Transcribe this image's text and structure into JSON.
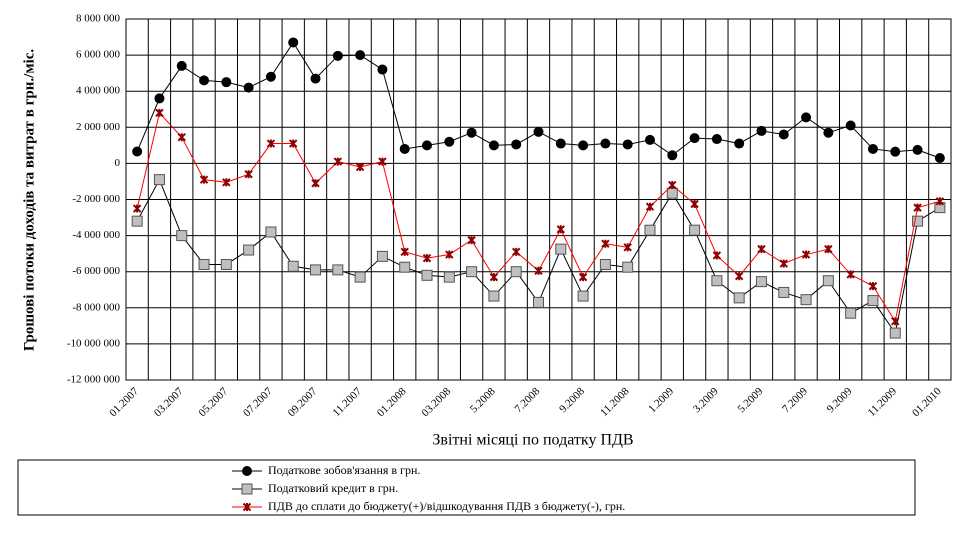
{
  "chart_data": {
    "type": "line",
    "ylabel": "Грошові потоки доходів та витрат в грн./міс.",
    "xlabel": "Звітні місяці по податку ПДВ",
    "categories": [
      "01.2007",
      null,
      "03.2007",
      null,
      "05.2007",
      null,
      "07.2007",
      null,
      "09.2007",
      null,
      "11.2007",
      null,
      "01.2008",
      null,
      "03.2008",
      null,
      "5.2008",
      null,
      "7.2008",
      null,
      "9.2008",
      null,
      "11.2008",
      null,
      "1.2009",
      null,
      "3.2009",
      null,
      "5.2009",
      null,
      "7.2009",
      null,
      "9.2009",
      null,
      "11.2009",
      null,
      "01.2010"
    ],
    "series": [
      {
        "name": "Податкове зобов'язання в грн.",
        "color": "#000000",
        "marker": "circle",
        "values": [
          660000,
          3600000,
          5400000,
          4600000,
          4500000,
          4200000,
          4800000,
          6700000,
          4700000,
          5960000,
          6000000,
          5200000,
          800000,
          1000000,
          1200000,
          1700000,
          1000000,
          1050000,
          1750000,
          1100000,
          1000000,
          1100000,
          1050000,
          1300000,
          450000,
          1400000,
          1350000,
          1100000,
          1800000,
          1600000,
          2550000,
          1700000,
          2100000,
          800000,
          650000,
          750000,
          300000
        ]
      },
      {
        "name": "Податковий кредит в грн.",
        "color": "#000000",
        "marker": "square",
        "values": [
          -3200000,
          -900000,
          -4000000,
          -5600000,
          -5600000,
          -4800000,
          -3800000,
          -5700000,
          -5900000,
          -5900000,
          -6300000,
          -5150000,
          -5750000,
          -6200000,
          -6300000,
          -6000000,
          -7350000,
          -6000000,
          -7700000,
          -4750000,
          -7350000,
          -5600000,
          -5750000,
          -3700000,
          -1650000,
          -3700000,
          -6500000,
          -7450000,
          -6550000,
          -7150000,
          -7550000,
          -6500000,
          -8300000,
          -7600000,
          -9400000,
          -3200000,
          -2450000
        ]
      },
      {
        "name": "ПДВ до сплати до бюджету(+)/відшкодування ПДВ з бюджету(-), грн.",
        "color": "#ff0000",
        "marker": "star",
        "values": [
          -2500000,
          2800000,
          1450000,
          -900000,
          -1050000,
          -600000,
          1100000,
          1100000,
          -1100000,
          100000,
          -200000,
          100000,
          -4900000,
          -5250000,
          -5050000,
          -4250000,
          -6300000,
          -4900000,
          -5950000,
          -3650000,
          -6300000,
          -4450000,
          -4650000,
          -2400000,
          -1200000,
          -2250000,
          -5100000,
          -6250000,
          -4750000,
          -5550000,
          -5050000,
          -4750000,
          -6150000,
          -6800000,
          -8750000,
          -2450000,
          -2100000
        ]
      }
    ],
    "ylim": [
      -12000000,
      8000000
    ],
    "yticks": [
      {
        "value": -12000000,
        "label": "-12 000 000"
      },
      {
        "value": -10000000,
        "label": "-10 000 000"
      },
      {
        "value": -8000000,
        "label": "-8 000 000"
      },
      {
        "value": -6000000,
        "label": "-6 000 000"
      },
      {
        "value": -4000000,
        "label": "-4 000 000"
      },
      {
        "value": -2000000,
        "label": "-2 000 000"
      },
      0,
      {
        "value": 2000000,
        "label": "2 000 000"
      },
      {
        "value": 4000000,
        "label": "4 000 000"
      },
      {
        "value": 6000000,
        "label": "6 000 000"
      },
      {
        "value": 8000000,
        "label": "8 000 000"
      }
    ],
    "grid": true
  }
}
